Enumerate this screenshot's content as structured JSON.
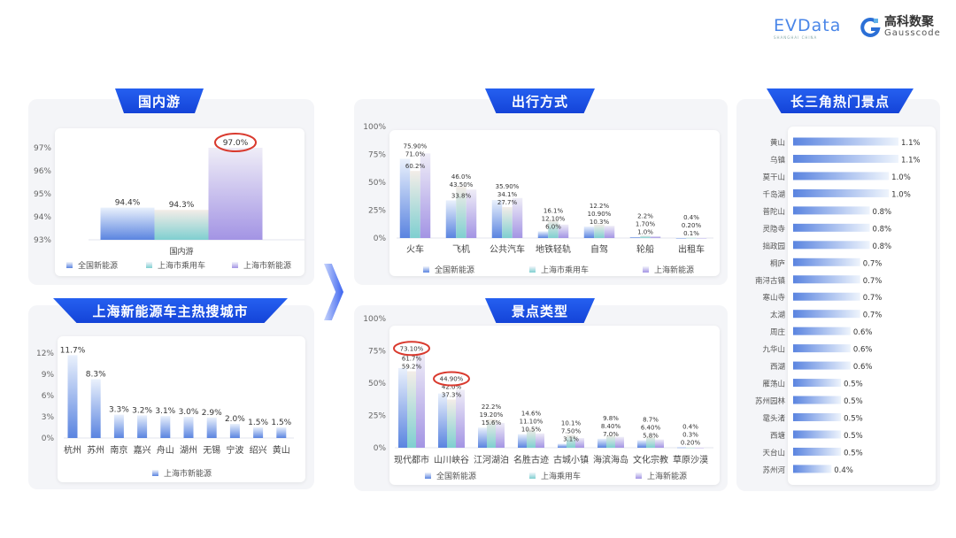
{
  "logos": {
    "evdata": "EVData",
    "evdata_sub": "SHANGHAI CHINA",
    "gauss_cn": "高科数聚",
    "gauss_en": "Gausscode"
  },
  "panels": {
    "domestic": "国内游",
    "cities": "上海新能源车主热搜城市",
    "transport": "出行方式",
    "scenic_type": "景点类型",
    "hot_spots": "长三角热门景点"
  },
  "colors": {
    "banner": "#1a4fe0",
    "series": [
      "#5a84e0",
      "#7fcfd0",
      "#a394e4"
    ],
    "highlight": "#d93a2e"
  },
  "chart_data": [
    {
      "type": "bar",
      "categories": [
        "国内游"
      ],
      "ylim": [
        93,
        97
      ],
      "yticks": [
        93,
        94,
        95,
        96,
        97
      ],
      "grid": false,
      "legend": "bottom",
      "series": [
        {
          "name": "全国新能源",
          "values": [
            94.4
          ],
          "decimals": 1
        },
        {
          "name": "上海市乘用车",
          "values": [
            94.3
          ],
          "decimals": 1
        },
        {
          "name": "上海市新能源",
          "values": [
            97.0
          ],
          "decimals": 1
        }
      ],
      "highlight": [
        [
          2,
          0
        ]
      ]
    },
    {
      "type": "bar",
      "categories": [
        "杭州",
        "苏州",
        "南京",
        "嘉兴",
        "舟山",
        "湖州",
        "无锡",
        "宁波",
        "绍兴",
        "黄山"
      ],
      "ylim": [
        0,
        12
      ],
      "yticks": [
        0,
        3,
        6,
        9,
        12
      ],
      "grid": false,
      "legend": "bottom",
      "series": [
        {
          "name": "上海市新能源",
          "values": [
            11.7,
            8.3,
            3.3,
            3.2,
            3.1,
            3.0,
            2.9,
            2.0,
            1.5,
            1.5
          ],
          "decimals": 1
        }
      ],
      "highlight": []
    },
    {
      "type": "bar",
      "categories": [
        "火车",
        "飞机",
        "公共汽车",
        "地铁轻轨",
        "自驾",
        "轮船",
        "出租车"
      ],
      "ylim": [
        0,
        100
      ],
      "yticks": [
        0,
        25,
        50,
        75,
        100
      ],
      "grid": false,
      "legend": "bottom",
      "series": [
        {
          "name": "全国新能源",
          "values": [
            71.0,
            33.8,
            34.1,
            6.0,
            10.3,
            1.0,
            0.1
          ],
          "decimals": 1
        },
        {
          "name": "上海市乘用车",
          "values": [
            60.2,
            46.0,
            27.7,
            16.1,
            12.2,
            2.2,
            0.4
          ],
          "decimals": 1
        },
        {
          "name": "上海新能源",
          "values": [
            75.9,
            43.5,
            35.9,
            12.1,
            10.9,
            1.7,
            0.2
          ],
          "decimals": 2
        }
      ],
      "highlight": []
    },
    {
      "type": "bar",
      "categories": [
        "现代都市",
        "山川峡谷",
        "江河湖泊",
        "名胜古迹",
        "古城小镇",
        "海滨海岛",
        "文化宗教",
        "草原沙漠"
      ],
      "ylim": [
        0,
        100
      ],
      "yticks": [
        0,
        25,
        50,
        75,
        100
      ],
      "grid": false,
      "legend": "bottom",
      "series": [
        {
          "name": "全国新能源",
          "values": [
            61.7,
            42.0,
            15.6,
            10.5,
            3.1,
            7.0,
            5.8,
            0.4
          ],
          "decimals": 1
        },
        {
          "name": "上海乘用车",
          "values": [
            59.2,
            37.3,
            22.2,
            14.6,
            10.1,
            9.8,
            8.7,
            0.3
          ],
          "decimals": 1
        },
        {
          "name": "上海新能源",
          "values": [
            73.1,
            44.9,
            19.2,
            11.1,
            7.5,
            8.4,
            6.4,
            0.2
          ],
          "decimals": 2
        }
      ],
      "highlight": [
        [
          2,
          0
        ],
        [
          2,
          1
        ]
      ]
    },
    {
      "type": "bar",
      "orientation": "horizontal",
      "categories": [
        "黄山",
        "乌镇",
        "莫干山",
        "千岛湖",
        "普陀山",
        "灵隐寺",
        "拙政园",
        "桐庐",
        "南浔古镇",
        "寒山寺",
        "太湖",
        "周庄",
        "九华山",
        "西湖",
        "雁荡山",
        "苏州园林",
        "鼋头渚",
        "西塘",
        "天台山",
        "苏州河"
      ],
      "series": [
        {
          "values": [
            1.1,
            1.1,
            1.0,
            1.0,
            0.8,
            0.8,
            0.8,
            0.7,
            0.7,
            0.7,
            0.7,
            0.6,
            0.6,
            0.6,
            0.5,
            0.5,
            0.5,
            0.5,
            0.5,
            0.4
          ],
          "decimals": 1
        }
      ],
      "grid": false
    }
  ]
}
